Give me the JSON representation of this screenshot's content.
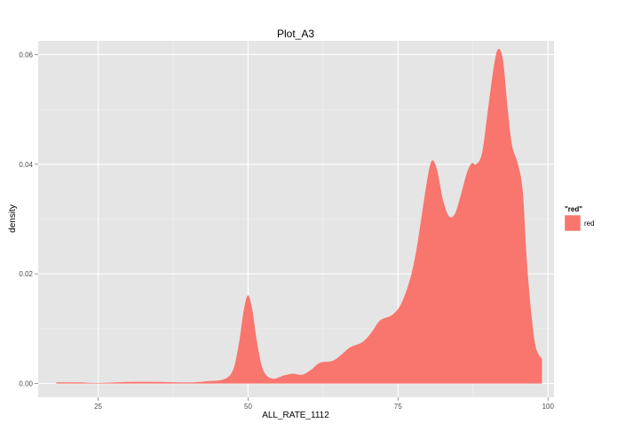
{
  "chart_data": {
    "type": "area",
    "title": "Plot_A3",
    "xlabel": "ALL_RATE_1112",
    "ylabel": "density",
    "xlim": [
      15,
      101
    ],
    "ylim": [
      -0.0025,
      0.0625
    ],
    "x_ticks": [
      25,
      50,
      75,
      100
    ],
    "x_tick_labels": [
      "25",
      "50",
      "75",
      "100"
    ],
    "y_ticks": [
      0.0,
      0.02,
      0.04,
      0.06
    ],
    "y_tick_labels": [
      "0.00",
      "0.02",
      "0.04",
      "0.06"
    ],
    "grid": true,
    "legend": {
      "title": "\"red\"",
      "position": "right",
      "entries": [
        "red"
      ]
    },
    "colors": {
      "fill": "#F8766D",
      "panel": "#E5E5E5",
      "grid_major": "#FFFFFF",
      "grid_minor": "#F2F2F2"
    },
    "series": [
      {
        "name": "red",
        "x": [
          18,
          22,
          25,
          30,
          35,
          40,
          43,
          46,
          47.5,
          48.5,
          49.3,
          50,
          50.7,
          51.5,
          52.5,
          54,
          56,
          57.5,
          59,
          60.5,
          62,
          64,
          65.5,
          67,
          69,
          70.5,
          72,
          74,
          75.5,
          77,
          78,
          79,
          80,
          80.7,
          81.5,
          82.5,
          83.5,
          84.5,
          85.5,
          86.5,
          87.3,
          88,
          89,
          90,
          91,
          91.7,
          92.5,
          93.3,
          94,
          95,
          95.8,
          96.5,
          97.3,
          98,
          99
        ],
        "y": [
          0.0002,
          0.0002,
          0.0001,
          0.0003,
          0.0003,
          0.0002,
          0.0004,
          0.0008,
          0.0025,
          0.0075,
          0.0135,
          0.0161,
          0.0135,
          0.0075,
          0.0025,
          0.0009,
          0.0015,
          0.0018,
          0.0016,
          0.0025,
          0.0038,
          0.0041,
          0.0052,
          0.0066,
          0.0075,
          0.0092,
          0.0115,
          0.0125,
          0.0145,
          0.019,
          0.024,
          0.031,
          0.038,
          0.0407,
          0.039,
          0.0335,
          0.0305,
          0.031,
          0.0345,
          0.0385,
          0.0402,
          0.04,
          0.042,
          0.05,
          0.058,
          0.061,
          0.059,
          0.05,
          0.0435,
          0.04,
          0.035,
          0.022,
          0.012,
          0.0065,
          0.0045
        ]
      }
    ]
  }
}
